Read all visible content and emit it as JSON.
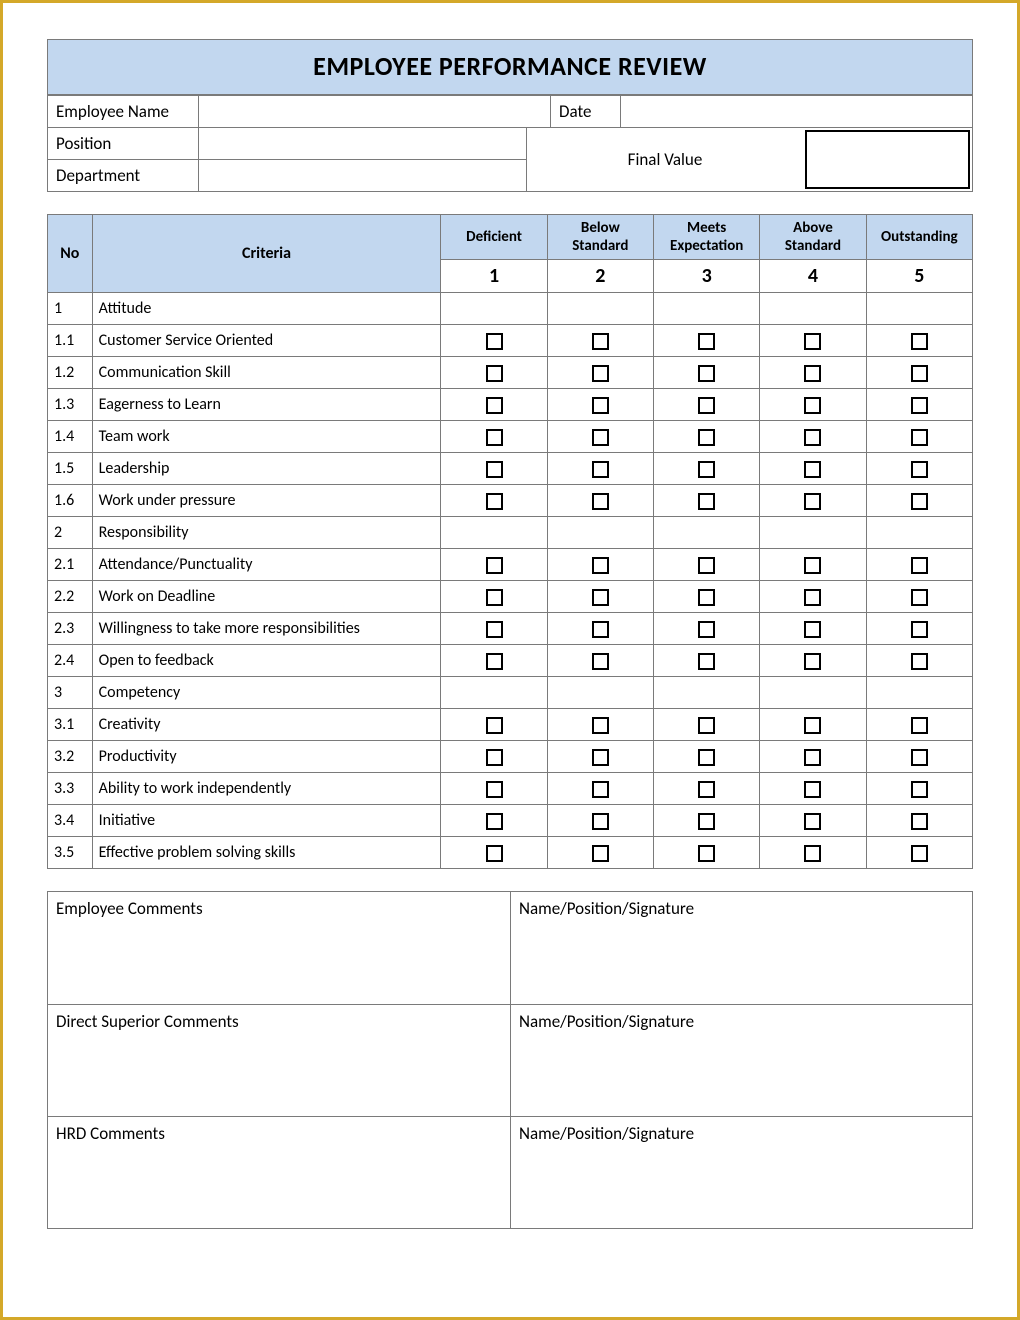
{
  "title": "EMPLOYEE PERFORMANCE REVIEW",
  "colors": {
    "header_bg": "#c2d7ef",
    "border": "#7a7a7a",
    "page_border": "#d4a829",
    "checkbox_border": "#000000",
    "final_box_border": "#000000",
    "background": "#ffffff",
    "text": "#000000"
  },
  "typography": {
    "font_family": "Calibri, Arial, sans-serif",
    "title_fontsize": 26,
    "body_fontsize": 17,
    "table_fontsize": 16,
    "rating_number_fontsize": 20
  },
  "info": {
    "employee_name_label": "Employee Name",
    "employee_name_value": "",
    "date_label": "Date",
    "date_value": "",
    "position_label": "Position",
    "position_value": "",
    "department_label": "Department",
    "department_value": "",
    "final_value_label": "Final Value",
    "final_value": ""
  },
  "criteria_table": {
    "headers": {
      "no": "No",
      "criteria": "Criteria",
      "ratings": [
        {
          "label": "Deficient",
          "number": "1"
        },
        {
          "label": "Below Standard",
          "number": "2"
        },
        {
          "label": "Meets Expectation",
          "number": "3"
        },
        {
          "label": "Above Standard",
          "number": "4"
        },
        {
          "label": "Outstanding",
          "number": "5"
        }
      ]
    },
    "rows": [
      {
        "no": "1",
        "label": "Attitude",
        "is_section": true
      },
      {
        "no": "1.1",
        "label": "Customer Service Oriented",
        "is_section": false
      },
      {
        "no": "1.2",
        "label": "Communication Skill",
        "is_section": false
      },
      {
        "no": "1.3",
        "label": "Eagerness to Learn",
        "is_section": false
      },
      {
        "no": "1.4",
        "label": "Team work",
        "is_section": false
      },
      {
        "no": "1.5",
        "label": "Leadership",
        "is_section": false
      },
      {
        "no": "1.6",
        "label": "Work under pressure",
        "is_section": false
      },
      {
        "no": "2",
        "label": "Responsibility",
        "is_section": true
      },
      {
        "no": "2.1",
        "label": "Attendance/Punctuality",
        "is_section": false
      },
      {
        "no": "2.2",
        "label": "Work on Deadline",
        "is_section": false
      },
      {
        "no": "2.3",
        "label": "Willingness to take more responsibilities",
        "is_section": false
      },
      {
        "no": "2.4",
        "label": "Open to feedback",
        "is_section": false
      },
      {
        "no": "3",
        "label": "Competency",
        "is_section": true
      },
      {
        "no": "3.1",
        "label": "Creativity",
        "is_section": false
      },
      {
        "no": "3.2",
        "label": "Productivity",
        "is_section": false
      },
      {
        "no": "3.3",
        "label": "Ability to work independently",
        "is_section": false
      },
      {
        "no": "3.4",
        "label": "Initiative",
        "is_section": false
      },
      {
        "no": "3.5",
        "label": "Effective problem solving skills",
        "is_section": false
      }
    ]
  },
  "comments": {
    "rows": [
      {
        "left": "Employee Comments",
        "right": "Name/Position/Signature"
      },
      {
        "left": "Direct Superior Comments",
        "right": "Name/Position/Signature"
      },
      {
        "left": "HRD Comments",
        "right": "Name/Position/Signature"
      }
    ]
  }
}
